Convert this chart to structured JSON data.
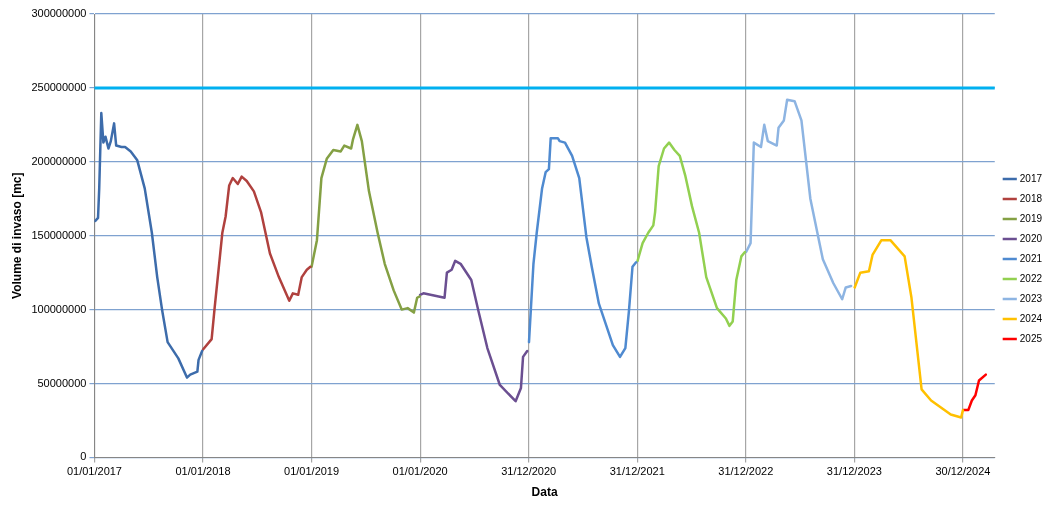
{
  "chart_data": {
    "type": "line",
    "xlabel": "Data",
    "ylabel": "Volume di invaso [mc]",
    "xlim": [
      "2017-01-01",
      "2025-04-16"
    ],
    "xticks": [
      {
        "value": "2017-01-01",
        "label": "01/01/2017"
      },
      {
        "value": "2018-01-01",
        "label": "01/01/2018"
      },
      {
        "value": "2019-01-01",
        "label": "01/01/2019"
      },
      {
        "value": "2020-01-01",
        "label": "01/01/2020"
      },
      {
        "value": "2020-12-31",
        "label": "31/12/2020"
      },
      {
        "value": "2021-12-31",
        "label": "31/12/2021"
      },
      {
        "value": "2022-12-31",
        "label": "31/12/2022"
      },
      {
        "value": "2023-12-31",
        "label": "31/12/2023"
      },
      {
        "value": "2024-12-30",
        "label": "30/12/2024"
      }
    ],
    "ylim": [
      0,
      300000000
    ],
    "yticks": [
      0,
      50000000,
      100000000,
      150000000,
      200000000,
      250000000,
      300000000
    ],
    "grid": true,
    "legend": "right",
    "marker": "none",
    "line_style": "solid",
    "ref_lines": [
      {
        "axis": "y",
        "value": 250000000,
        "color": "#00b0f0"
      }
    ],
    "series": [
      {
        "name": "2017",
        "color": "#3d6cab",
        "x": [
          "2017-01-01",
          "2017-01-04",
          "2017-01-13",
          "2017-01-17",
          "2017-01-24",
          "2017-01-31",
          "2017-02-07",
          "2017-02-17",
          "2017-02-25",
          "2017-03-08",
          "2017-03-15",
          "2017-04-02",
          "2017-04-14",
          "2017-05-03",
          "2017-05-25",
          "2017-06-19",
          "2017-07-13",
          "2017-07-31",
          "2017-08-17",
          "2017-09-04",
          "2017-10-10",
          "2017-11-08",
          "2017-11-19",
          "2017-12-13",
          "2017-12-17",
          "2017-12-29"
        ],
        "values": [
          160000000,
          160000000,
          162000000,
          182000000,
          233000000,
          213000000,
          217000000,
          209000000,
          214000000,
          226000000,
          211000000,
          210000000,
          210000000,
          207000000,
          201000000,
          182000000,
          152000000,
          122000000,
          99000000,
          78000000,
          67000000,
          54000000,
          56000000,
          58000000,
          66000000,
          72000000
        ]
      },
      {
        "name": "2018",
        "color": "#b0413e",
        "x": [
          "2018-01-01",
          "2018-01-30",
          "2018-02-09",
          "2018-03-07",
          "2018-03-18",
          "2018-03-30",
          "2018-04-11",
          "2018-04-28",
          "2018-05-11",
          "2018-05-28",
          "2018-06-21",
          "2018-07-15",
          "2018-08-14",
          "2018-09-13",
          "2018-10-18",
          "2018-10-30",
          "2018-11-17",
          "2018-11-29",
          "2018-12-16",
          "2018-12-28"
        ],
        "values": [
          73000000,
          80000000,
          101000000,
          152000000,
          163000000,
          184000000,
          189000000,
          185000000,
          190000000,
          187000000,
          180000000,
          166000000,
          138000000,
          122000000,
          106000000,
          111000000,
          110000000,
          122000000,
          127000000,
          129000000
        ]
      },
      {
        "name": "2019",
        "color": "#84a044",
        "x": [
          "2019-01-01",
          "2019-01-19",
          "2019-02-03",
          "2019-02-21",
          "2019-03-15",
          "2019-04-09",
          "2019-04-21",
          "2019-05-14",
          "2019-05-20",
          "2019-06-04",
          "2019-06-19",
          "2019-07-13",
          "2019-08-11",
          "2019-09-04",
          "2019-10-04",
          "2019-10-31",
          "2019-11-20",
          "2019-12-11",
          "2019-12-22",
          "2019-12-31"
        ],
        "values": [
          129000000,
          147000000,
          189000000,
          202000000,
          208000000,
          207000000,
          211000000,
          209000000,
          215000000,
          225000000,
          214000000,
          180000000,
          152000000,
          131000000,
          113000000,
          100000000,
          101000000,
          98000000,
          108000000,
          109000000
        ]
      },
      {
        "name": "2020",
        "color": "#6b4f91",
        "x": [
          "2020-01-01",
          "2020-01-12",
          "2020-03-23",
          "2020-03-31",
          "2020-04-16",
          "2020-04-28",
          "2020-05-16",
          "2020-06-21",
          "2020-07-15",
          "2020-08-14",
          "2020-09-25",
          "2020-11-17",
          "2020-12-05",
          "2020-12-12",
          "2020-12-26"
        ],
        "values": [
          110000000,
          111000000,
          108000000,
          125000000,
          127000000,
          133000000,
          131000000,
          120000000,
          99000000,
          74000000,
          49000000,
          38000000,
          47000000,
          68000000,
          72000000
        ]
      },
      {
        "name": "2021",
        "color": "#4f8ad0",
        "x": [
          "2021-01-01",
          "2021-01-16",
          "2021-01-27",
          "2021-02-14",
          "2021-02-26",
          "2021-03-09",
          "2021-03-15",
          "2021-04-08",
          "2021-04-14",
          "2021-05-02",
          "2021-05-26",
          "2021-06-19",
          "2021-07-13",
          "2021-07-31",
          "2021-08-24",
          "2021-10-10",
          "2021-11-03",
          "2021-11-21",
          "2021-12-03",
          "2021-12-15",
          "2021-12-27"
        ],
        "values": [
          78000000,
          131000000,
          152000000,
          182000000,
          193000000,
          195000000,
          216000000,
          216000000,
          214000000,
          213000000,
          204000000,
          189000000,
          149000000,
          129000000,
          104000000,
          76000000,
          68000000,
          74000000,
          99000000,
          129000000,
          132000000
        ]
      },
      {
        "name": "2022",
        "color": "#92d050",
        "x": [
          "2022-01-01",
          "2022-01-18",
          "2022-02-06",
          "2022-02-23",
          "2022-03-01",
          "2022-03-13",
          "2022-03-31",
          "2022-04-17",
          "2022-05-05",
          "2022-05-23",
          "2022-06-10",
          "2022-07-03",
          "2022-07-27",
          "2022-08-20",
          "2022-09-25",
          "2022-10-25",
          "2022-11-06",
          "2022-11-17",
          "2022-11-29",
          "2022-12-16",
          "2022-12-28"
        ],
        "values": [
          133000000,
          145000000,
          152000000,
          157000000,
          166000000,
          197000000,
          209000000,
          213000000,
          208000000,
          204000000,
          191000000,
          170000000,
          152000000,
          122000000,
          101000000,
          94000000,
          89000000,
          92000000,
          120000000,
          136000000,
          139000000
        ]
      },
      {
        "name": "2023",
        "color": "#8db4e2",
        "x": [
          "2023-01-01",
          "2023-01-16",
          "2023-01-27",
          "2023-02-20",
          "2023-03-03",
          "2023-03-15",
          "2023-04-14",
          "2023-04-20",
          "2023-05-08",
          "2023-05-19",
          "2023-06-13",
          "2023-07-06",
          "2023-08-05",
          "2023-09-16",
          "2023-10-21",
          "2023-11-20",
          "2023-12-02",
          "2023-12-20"
        ],
        "values": [
          139000000,
          145000000,
          213000000,
          210000000,
          225000000,
          214000000,
          211000000,
          223000000,
          228000000,
          242000000,
          241000000,
          228000000,
          175000000,
          134000000,
          118000000,
          107000000,
          115000000,
          116000000
        ]
      },
      {
        "name": "2024",
        "color": "#ffc000",
        "x": [
          "2024-01-01",
          "2024-01-20",
          "2024-02-18",
          "2024-03-01",
          "2024-03-31",
          "2024-04-30",
          "2024-06-17",
          "2024-07-10",
          "2024-08-13",
          "2024-09-14",
          "2024-11-19",
          "2024-12-24",
          "2024-12-30"
        ],
        "values": [
          115000000,
          125000000,
          126000000,
          137000000,
          147000000,
          147000000,
          136000000,
          108000000,
          46000000,
          38500000,
          29000000,
          27000000,
          32000000
        ]
      },
      {
        "name": "2025",
        "color": "#ff0000",
        "x": [
          "2025-01-01",
          "2025-01-17",
          "2025-01-29",
          "2025-02-10",
          "2025-02-22",
          "2025-03-17"
        ],
        "values": [
          32000000,
          32000000,
          38500000,
          42000000,
          52000000,
          56000000
        ]
      }
    ]
  }
}
